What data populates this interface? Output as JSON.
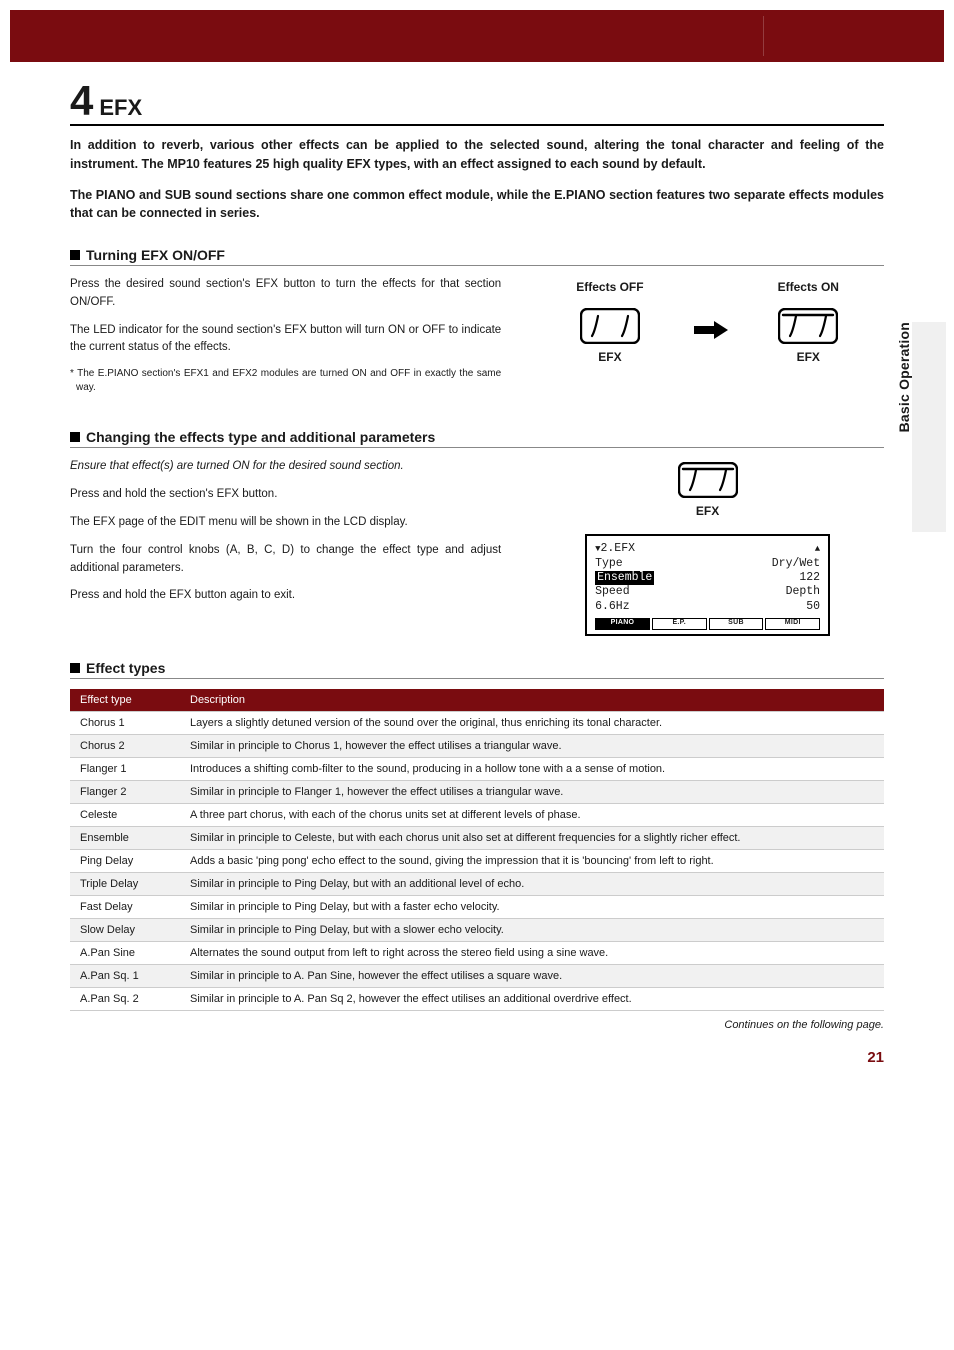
{
  "sidebar_label": "Basic Operation",
  "title_num": "4",
  "title_text": "EFX",
  "intro1": "In addition to reverb, various other effects can be applied to the selected sound, altering the tonal character and feeling of the instrument.  The MP10 features 25 high quality EFX types, with an effect assigned to each sound by default.",
  "intro2": "The PIANO and SUB sound sections share one common effect module, while the E.PIANO section features two separate effects modules that can be connected in series.",
  "s1_head": "Turning EFX ON/OFF",
  "s1_p1": "Press the desired sound section's EFX button to turn the effects for that section ON/OFF.",
  "s1_p2": "The LED indicator for the sound section's EFX button will turn ON or OFF to indicate the current status of the effects.",
  "s1_note": "* The E.PIANO section's EFX1 and EFX2 modules are turned ON and OFF in exactly the same way.",
  "s1_off_label": "Effects OFF",
  "s1_on_label": "Effects ON",
  "btn_caption": "EFX",
  "s2_head": "Changing the effects type and additional parameters",
  "s2_p1": "Ensure that effect(s) are turned ON for the desired sound section.",
  "s2_p2": "Press and hold the section's EFX button.",
  "s2_p3": "The EFX page of the EDIT menu will be shown in the LCD display.",
  "s2_p4": "Turn the four control knobs (A, B, C, D) to change the effect type and adjust additional parameters.",
  "s2_p5": "Press and hold the EFX button again to exit.",
  "lcd": {
    "title": "2.EFX",
    "rowA_l": "Type",
    "rowA_r": "Dry/Wet",
    "rowB_l": "Ensemble",
    "rowB_r": "122",
    "rowC_l": "Speed",
    "rowC_r": "Depth",
    "rowD_l": "6.6Hz",
    "rowD_r": "50",
    "tabs": [
      "PIANO",
      "E.P.",
      "SUB",
      "MIDI"
    ]
  },
  "s3_head": "Effect types",
  "table_h1": "Effect type",
  "table_h2": "Description",
  "rows": [
    {
      "t": "Chorus 1",
      "d": "Layers a slightly detuned version of the sound over the original, thus enriching its tonal character."
    },
    {
      "t": "Chorus 2",
      "d": "Similar in principle to Chorus 1, however the effect utilises a triangular wave."
    },
    {
      "t": "Flanger 1",
      "d": "Introduces a shifting comb-filter to the sound, producing in a hollow tone with a a sense of motion."
    },
    {
      "t": "Flanger 2",
      "d": "Similar in principle to Flanger 1,  however the effect utilises a triangular wave."
    },
    {
      "t": "Celeste",
      "d": "A three part chorus, with each of the chorus units set at different levels of phase."
    },
    {
      "t": "Ensemble",
      "d": "Similar in principle to Celeste, but with each chorus unit also set at different frequencies for a slightly richer effect."
    },
    {
      "t": "Ping Delay",
      "d": "Adds a basic 'ping pong' echo effect to the sound, giving the impression that it is 'bouncing' from left to right."
    },
    {
      "t": "Triple Delay",
      "d": "Similar in principle to Ping Delay, but with an additional level of echo."
    },
    {
      "t": "Fast Delay",
      "d": "Similar in principle to Ping Delay, but with a faster echo velocity."
    },
    {
      "t": "Slow Delay",
      "d": "Similar in principle to Ping Delay, but with a slower echo velocity."
    },
    {
      "t": "A.Pan Sine",
      "d": "Alternates the sound output from left to right across the stereo field using a sine wave."
    },
    {
      "t": "A.Pan Sq. 1",
      "d": "Similar in principle to A. Pan Sine, however the effect utilises a square wave."
    },
    {
      "t": "A.Pan Sq. 2",
      "d": "Similar in principle to A. Pan Sq 2, however the effect utilises an additional overdrive effect."
    }
  ],
  "continues": "Continues on the following page.",
  "page_number": "21",
  "colors": {
    "brand": "#7a0c10",
    "grey_row": "#f1f1f1",
    "rule": "#cccccc"
  }
}
